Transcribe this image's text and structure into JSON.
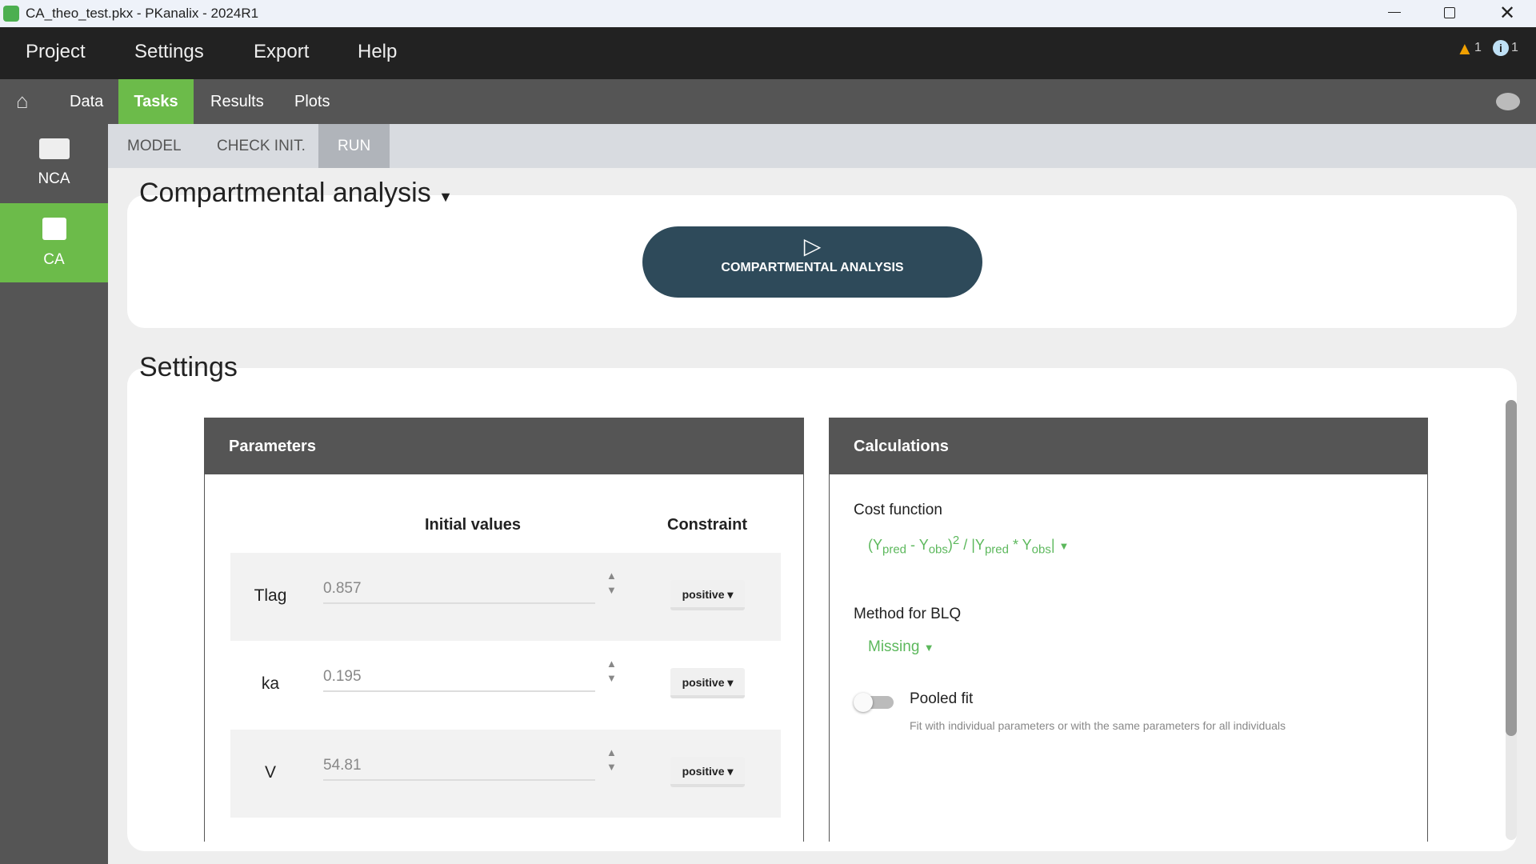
{
  "window": {
    "title": "CA_theo_test.pkx - PKanalix - 2024R1"
  },
  "menu": {
    "items": [
      "Project",
      "Settings",
      "Export",
      "Help"
    ],
    "warnings": "1",
    "infos": "1"
  },
  "nav": {
    "tabs": [
      "Data",
      "Tasks",
      "Results",
      "Plots"
    ],
    "active": "Tasks"
  },
  "sidebar": {
    "items": [
      "NCA",
      "CA"
    ],
    "active": "CA"
  },
  "subtabs": {
    "items": [
      "MODEL",
      "CHECK INIT.",
      "RUN"
    ],
    "active": "RUN"
  },
  "run": {
    "title": "Compartmental analysis",
    "button": "COMPARTMENTAL ANALYSIS"
  },
  "settings": {
    "title": "Settings",
    "parameters": {
      "title": "Parameters",
      "col_initial": "Initial values",
      "col_constraint": "Constraint",
      "rows": [
        {
          "name": "Tlag",
          "value": "0.857",
          "constraint": "positive"
        },
        {
          "name": "ka",
          "value": "0.195",
          "constraint": "positive"
        },
        {
          "name": "V",
          "value": "54.81",
          "constraint": "positive"
        }
      ]
    },
    "calculations": {
      "title": "Calculations",
      "cost_label": "Cost function",
      "cost": {
        "a": "(Y",
        "b": "pred",
        "c": " - Y",
        "d": "obs",
        "e": ")",
        "f": "2",
        "g": " / |Y",
        "h": "pred",
        "i": " * Y",
        "j": "obs",
        "k": "|"
      },
      "blq_label": "Method for BLQ",
      "blq_value": "Missing",
      "pooled_label": "Pooled fit",
      "pooled_on": false,
      "pooled_help": "Fit with individual parameters or with the same parameters for all individuals"
    }
  },
  "colors": {
    "accent": "#5cb85c",
    "run_button": "#2e4a5a"
  }
}
